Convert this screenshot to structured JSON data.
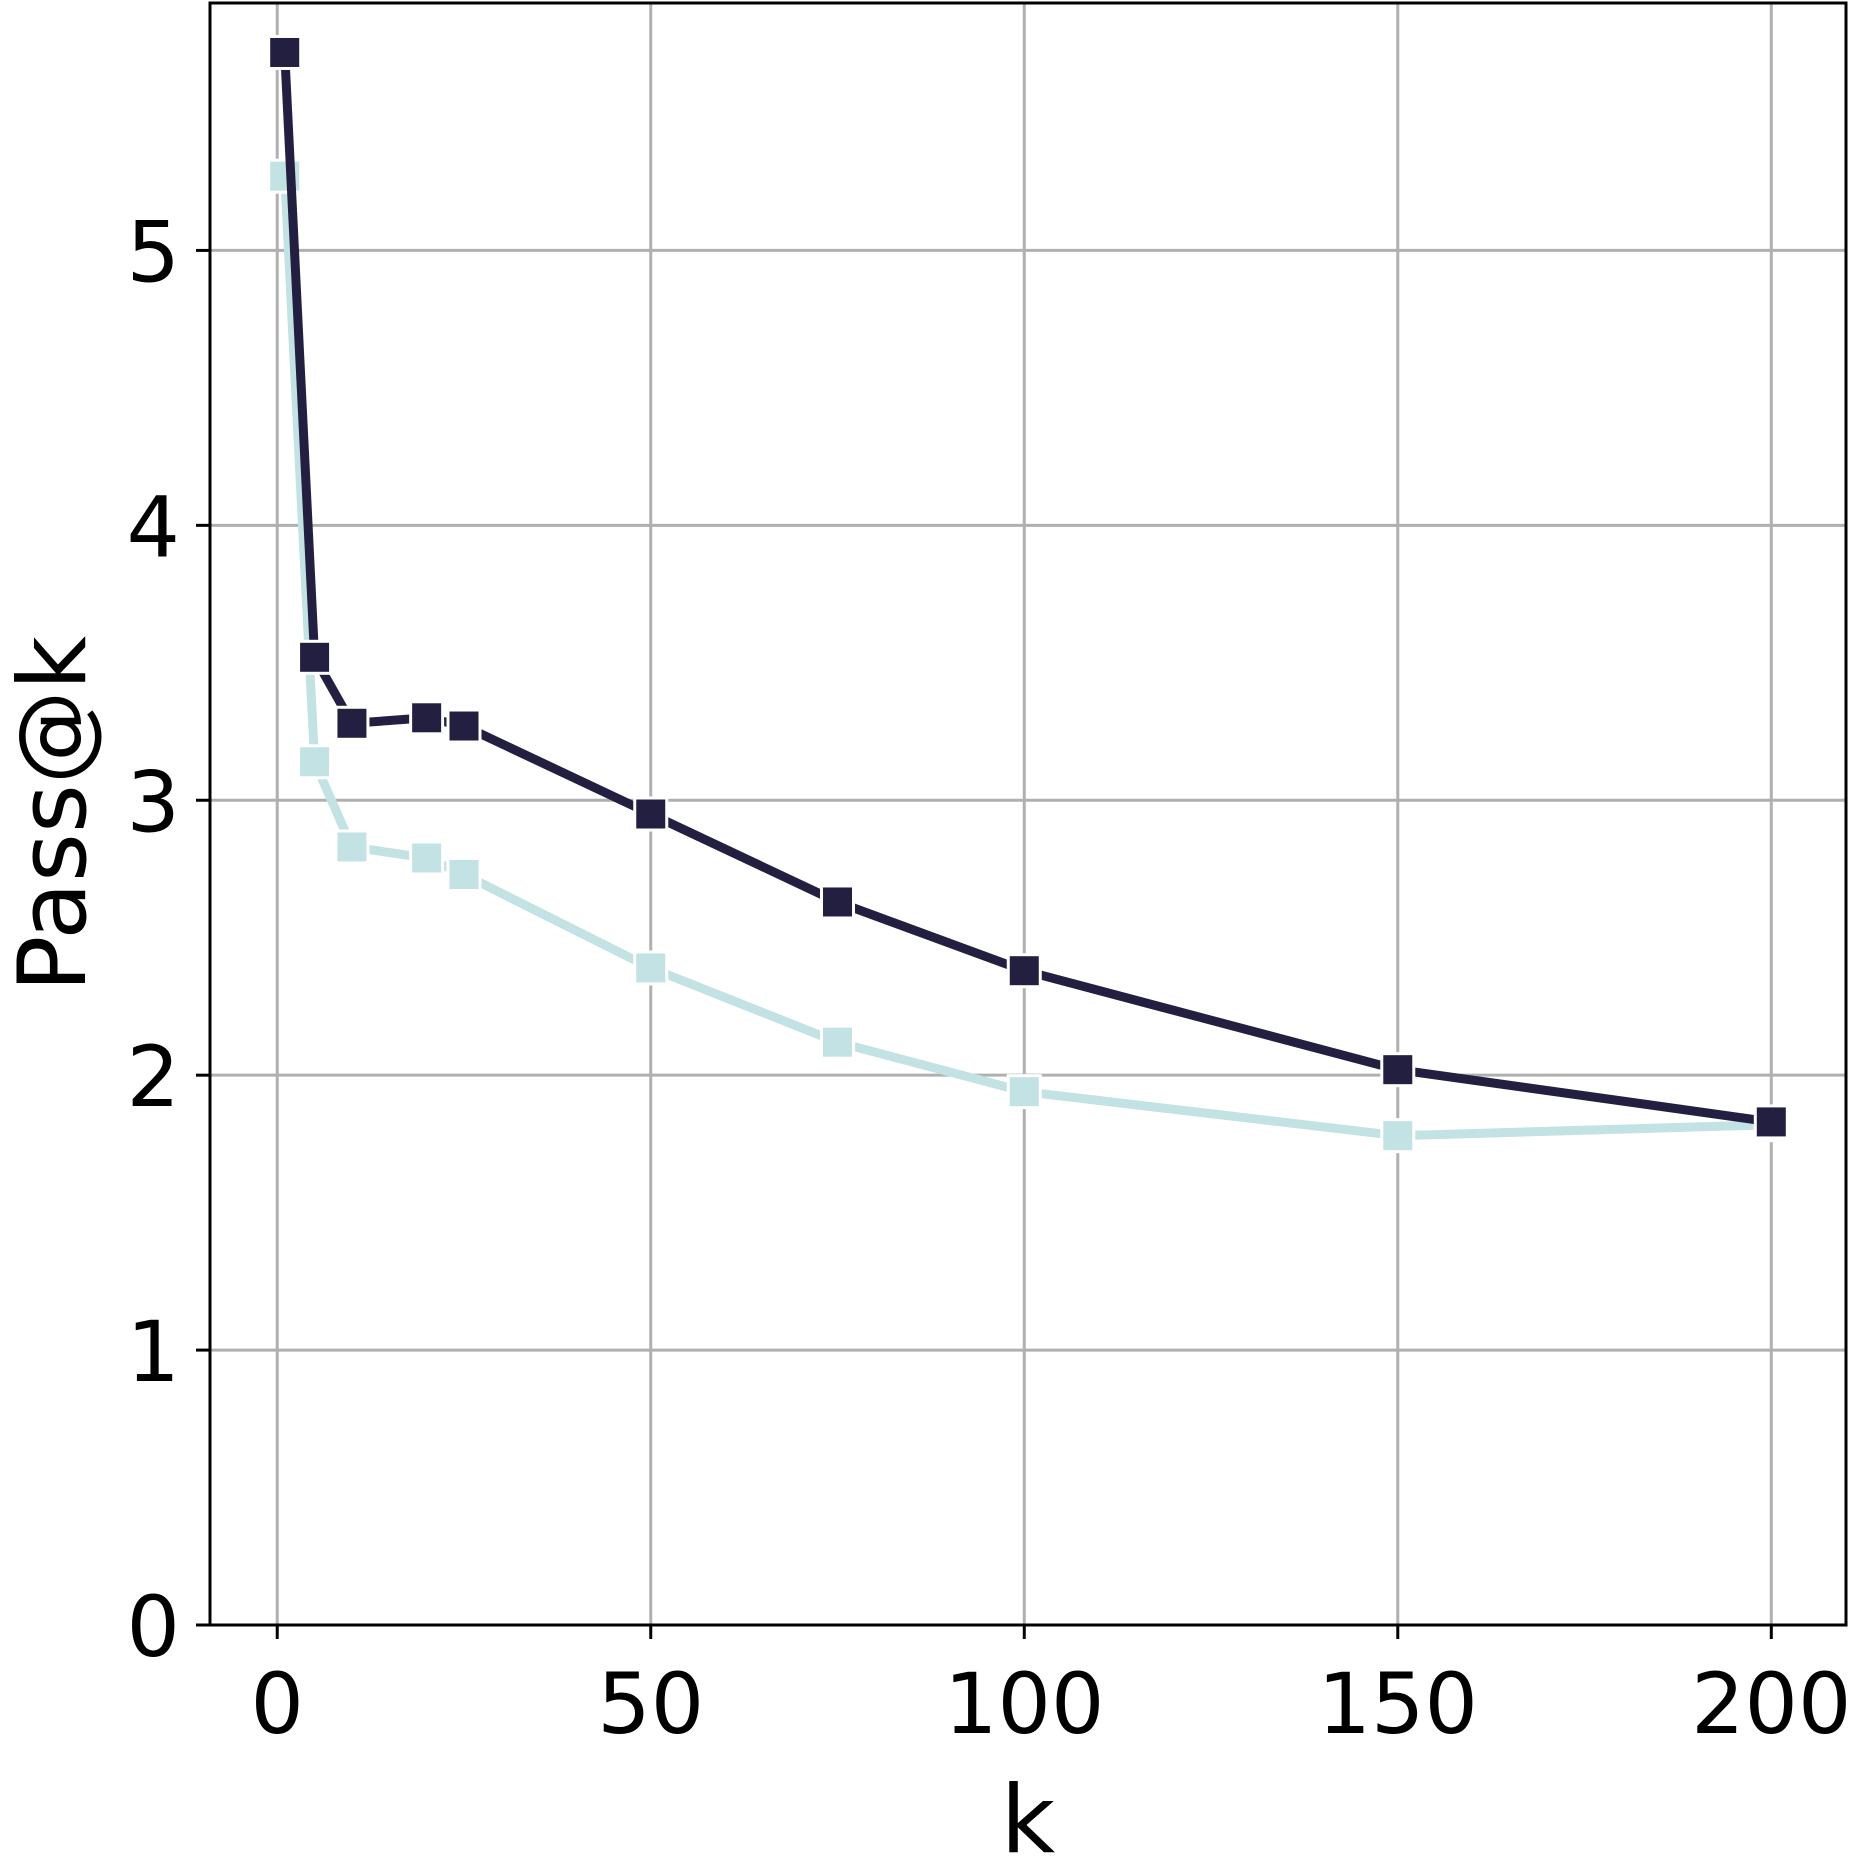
{
  "chart_data": {
    "type": "line",
    "title": "",
    "xlabel": "k",
    "ylabel": "Pass@k",
    "xlim": [
      -9,
      210
    ],
    "ylim": [
      0,
      5.9
    ],
    "xticks": [
      0,
      50,
      100,
      150,
      200
    ],
    "yticks": [
      0,
      1,
      2,
      3,
      4,
      5
    ],
    "xtick_labels": [
      "0",
      "50",
      "100",
      "150",
      "200"
    ],
    "ytick_labels": [
      "0",
      "1",
      "2",
      "3",
      "4",
      "5"
    ],
    "grid": true,
    "legend": "none",
    "marker": "square",
    "x": [
      1,
      5,
      10,
      20,
      25,
      50,
      75,
      100,
      150,
      200
    ],
    "series": [
      {
        "color": "#c3e2e3",
        "values": [
          5.27,
          3.14,
          2.83,
          2.79,
          2.73,
          2.39,
          2.12,
          1.94,
          1.78,
          1.82
        ]
      },
      {
        "color": "#231f40",
        "values": [
          5.72,
          3.52,
          3.28,
          3.3,
          3.27,
          2.95,
          2.63,
          2.38,
          2.02,
          1.83
        ]
      }
    ]
  }
}
